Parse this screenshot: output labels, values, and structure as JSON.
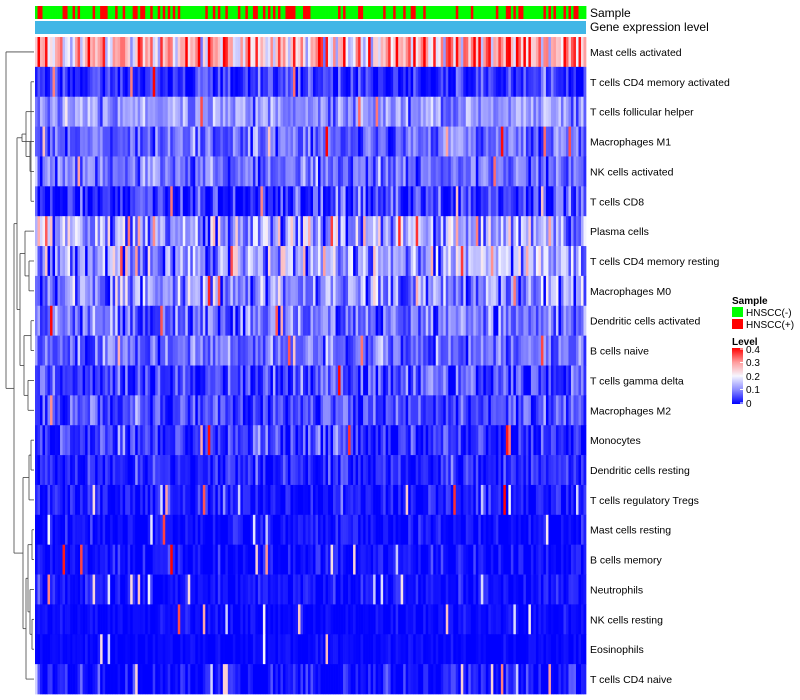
{
  "chart_data": {
    "type": "heatmap",
    "title": "",
    "annotations": [
      {
        "name": "Sample",
        "kind": "categorical"
      },
      {
        "name": "Gene expression level",
        "kind": "single-color"
      }
    ],
    "rows": [
      {
        "label": "Mast cells activated",
        "mean": 0.27,
        "spread": 0.09
      },
      {
        "label": "T cells CD4 memory activated",
        "mean": 0.03,
        "spread": 0.035
      },
      {
        "label": "T cells follicular helper",
        "mean": 0.11,
        "spread": 0.04
      },
      {
        "label": "Macrophages M1",
        "mean": 0.07,
        "spread": 0.035
      },
      {
        "label": "NK cells activated",
        "mean": 0.08,
        "spread": 0.04
      },
      {
        "label": "T cells CD8",
        "mean": 0.04,
        "spread": 0.05
      },
      {
        "label": "Plasma cells",
        "mean": 0.13,
        "spread": 0.08
      },
      {
        "label": "T cells CD4 memory resting",
        "mean": 0.13,
        "spread": 0.07
      },
      {
        "label": "Macrophages M0",
        "mean": 0.1,
        "spread": 0.07
      },
      {
        "label": "Dendritic cells activated",
        "mean": 0.08,
        "spread": 0.05
      },
      {
        "label": "B cells naive",
        "mean": 0.08,
        "spread": 0.04
      },
      {
        "label": "T cells gamma delta",
        "mean": 0.05,
        "spread": 0.05
      },
      {
        "label": "Macrophages M2",
        "mean": 0.05,
        "spread": 0.04
      },
      {
        "label": "Monocytes",
        "mean": 0.04,
        "spread": 0.035
      },
      {
        "label": "Dendritic cells resting",
        "mean": 0.025,
        "spread": 0.03
      },
      {
        "label": "T cells regulatory  Tregs",
        "mean": 0.015,
        "spread": 0.025
      },
      {
        "label": "Mast cells resting",
        "mean": 0.008,
        "spread": 0.02
      },
      {
        "label": "B cells memory",
        "mean": 0.008,
        "spread": 0.02
      },
      {
        "label": "Neutrophils",
        "mean": 0.012,
        "spread": 0.02
      },
      {
        "label": "NK cells resting",
        "mean": 0.004,
        "spread": 0.012
      },
      {
        "label": "Eosinophils",
        "mean": 0.003,
        "spread": 0.01
      },
      {
        "label": "T cells CD4 naive",
        "mean": 0.01,
        "spread": 0.03
      }
    ],
    "n_samples": 220,
    "sample_groups": [
      "HNSCC(-)",
      "HNSCC(+)"
    ],
    "positive_fraction": 0.33,
    "color_scale": {
      "domain": [
        0,
        0.1,
        0.2,
        0.3,
        0.4
      ],
      "colors": [
        "#0000ff",
        "#8a8aff",
        "#f6f6ff",
        "#ff9b9b",
        "#ff0000"
      ],
      "ticks": [
        "0.4",
        "0.3",
        "0.2",
        "0.1",
        "0"
      ]
    },
    "legend": {
      "sample_title": "Sample",
      "level_title": "Level",
      "groups": [
        {
          "label": "HNSCC(-)",
          "color": "#00ff00"
        },
        {
          "label": "HNSCC(+)",
          "color": "#ff0000"
        }
      ],
      "position": "right"
    },
    "level_annotation_color": "#41b6e6",
    "dendrogram": "left"
  }
}
